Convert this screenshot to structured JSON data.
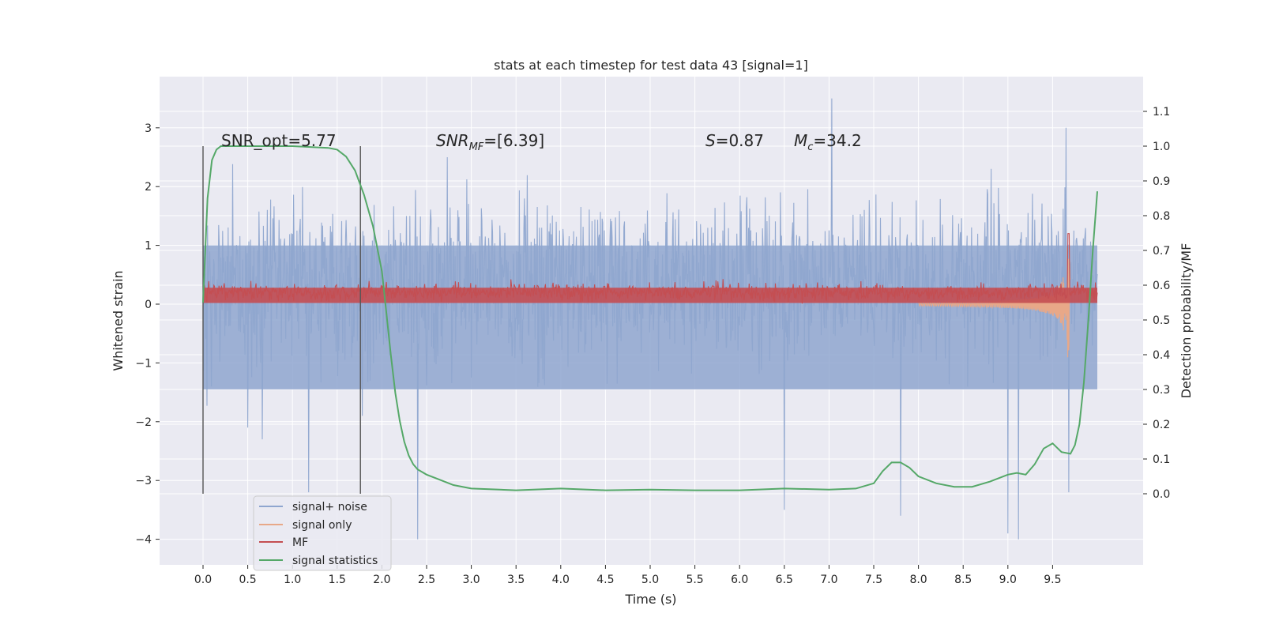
{
  "chart_data": {
    "type": "line",
    "title": "stats at each timestep for test data 43 [signal=1]",
    "xlabel": "Time (s)",
    "ylabel": "Whitened strain",
    "ylabel_right": "Detection probability/MF",
    "xlim": [
      -0.25,
      10.75
    ],
    "ylim": [
      -4.45,
      3.8
    ],
    "ylim_right": [
      -0.2,
      1.2
    ],
    "xticks": [
      "0.0",
      "0.5",
      "1.0",
      "1.5",
      "2.0",
      "2.5",
      "3.0",
      "3.5",
      "4.0",
      "4.5",
      "5.0",
      "5.5",
      "6.0",
      "6.5",
      "7.0",
      "7.5",
      "8.0",
      "8.5",
      "9.0",
      "9.5"
    ],
    "yticks": [
      "3",
      "2",
      "1",
      "0",
      "−1",
      "−2",
      "−3",
      "−4"
    ],
    "yticks_right": [
      "1.1",
      "1.0",
      "0.9",
      "0.8",
      "0.7",
      "0.6",
      "0.5",
      "0.4",
      "0.3",
      "0.2",
      "0.1",
      "0.0"
    ],
    "grid": true,
    "legend_position": "lower-left",
    "annotations": {
      "snr_opt": "SNR_opt=5.77",
      "snr_mf_prefix": "SNR",
      "snr_mf_sub": "MF",
      "snr_mf_value": "=[6.39]",
      "s_prefix": "S",
      "s_value": "=0.87",
      "mc_prefix": "M",
      "mc_sub": "c",
      "mc_value": "=34.2"
    },
    "vertical_markers": [
      0.0,
      1.76
    ],
    "series": [
      {
        "name": "signal+ noise",
        "color": "#8fa6cf",
        "axis": "left",
        "style": "noisy band",
        "t_range": [
          0.0,
          10.0
        ],
        "envelope_typical": [
          -1.6,
          2.3
        ],
        "extremes": [
          [
            0.5,
            -2.1
          ],
          [
            0.66,
            -2.3
          ],
          [
            1.18,
            -3.2
          ],
          [
            1.78,
            -1.9
          ],
          [
            2.4,
            -4.0
          ],
          [
            2.73,
            2.5
          ],
          [
            6.5,
            -3.5
          ],
          [
            7.03,
            3.5
          ],
          [
            7.8,
            -3.6
          ],
          [
            9.0,
            -3.9
          ],
          [
            9.12,
            -4.0
          ],
          [
            9.65,
            3.0
          ],
          [
            9.68,
            -3.2
          ]
        ]
      },
      {
        "name": "signal only",
        "color": "#e8a888",
        "axis": "left",
        "style": "chirp",
        "t_range": [
          8.0,
          9.7
        ],
        "peak": [
          9.68,
          1.3
        ],
        "trough": [
          9.68,
          -1.2
        ]
      },
      {
        "name": "MF",
        "color": "#c44e52",
        "axis": "left",
        "style": "noisy band",
        "t_range": [
          0.0,
          10.0
        ],
        "band": [
          0.0,
          0.55
        ],
        "peak": [
          9.68,
          1.2
        ]
      },
      {
        "name": "signal statistics",
        "color": "#55a868",
        "axis": "right",
        "style": "line",
        "x": [
          0.0,
          0.05,
          0.1,
          0.15,
          0.2,
          0.3,
          0.5,
          1.0,
          1.4,
          1.5,
          1.6,
          1.7,
          1.8,
          1.9,
          2.0,
          2.05,
          2.1,
          2.15,
          2.2,
          2.25,
          2.3,
          2.35,
          2.4,
          2.5,
          2.6,
          2.8,
          3.0,
          3.5,
          4.0,
          4.5,
          5.0,
          5.5,
          6.0,
          6.5,
          7.0,
          7.3,
          7.5,
          7.6,
          7.7,
          7.8,
          7.9,
          8.0,
          8.2,
          8.4,
          8.6,
          8.8,
          9.0,
          9.1,
          9.2,
          9.3,
          9.4,
          9.5,
          9.6,
          9.7,
          9.75,
          9.8,
          9.85,
          9.9,
          9.95,
          10.0
        ],
        "values": [
          0.55,
          0.85,
          0.96,
          0.99,
          1.0,
          1.0,
          1.0,
          1.0,
          0.995,
          0.99,
          0.97,
          0.93,
          0.86,
          0.77,
          0.64,
          0.52,
          0.4,
          0.29,
          0.21,
          0.15,
          0.11,
          0.085,
          0.07,
          0.055,
          0.045,
          0.025,
          0.015,
          0.01,
          0.015,
          0.01,
          0.012,
          0.01,
          0.01,
          0.015,
          0.012,
          0.015,
          0.03,
          0.065,
          0.09,
          0.09,
          0.075,
          0.05,
          0.03,
          0.02,
          0.02,
          0.035,
          0.055,
          0.06,
          0.055,
          0.085,
          0.13,
          0.145,
          0.12,
          0.115,
          0.14,
          0.2,
          0.32,
          0.5,
          0.7,
          0.87
        ]
      }
    ]
  }
}
